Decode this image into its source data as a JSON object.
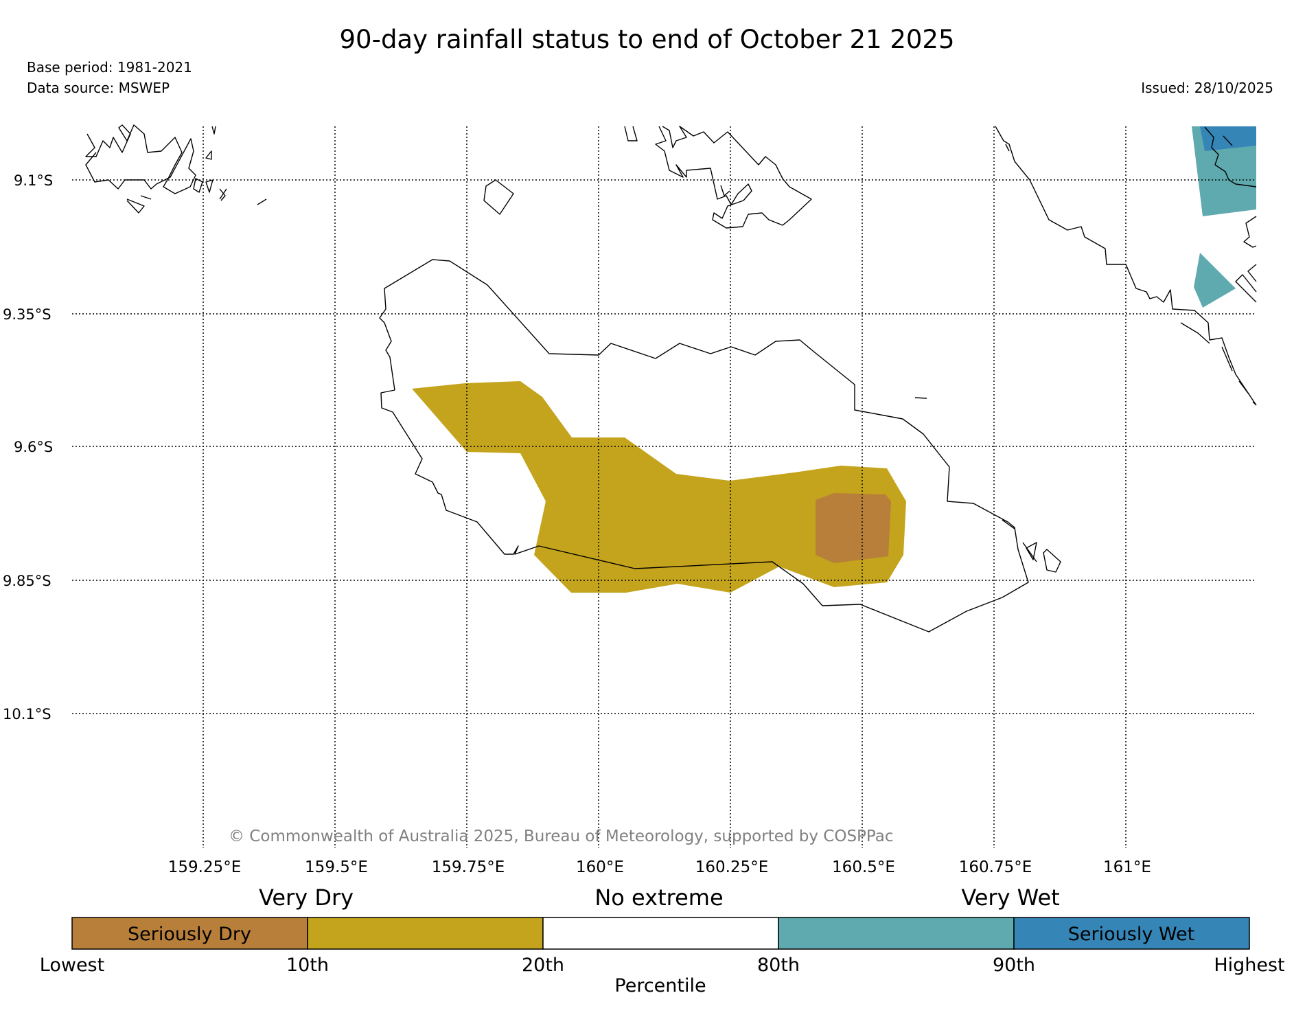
{
  "title": "90-day rainfall status to end of October 21 2025",
  "base_period": "Base period: 1981-2021",
  "data_source": "Data source: MSWEP",
  "issued": "Issued: 28/10/2025",
  "copyright": "© Commonwealth of Australia 2025, Bureau of Meteorology, supported by COSPPac",
  "lat_labels": [
    "9.1°S",
    "9.35°S",
    "9.6°S",
    "9.85°S",
    "10.1°S"
  ],
  "lon_labels": [
    "159.25°E",
    "159.5°E",
    "159.75°E",
    "160°E",
    "160.25°E",
    "160.5°E",
    "160.75°E",
    "161°E"
  ],
  "legend": {
    "category_labels": [
      "Very Dry",
      "No extreme",
      "Very Wet"
    ],
    "box_labels": [
      "Seriously Dry",
      "Seriously Wet"
    ],
    "percentile_labels": [
      "Lowest",
      "10th",
      "20th",
      "80th",
      "90th",
      "Highest"
    ],
    "axis_label": "Percentile",
    "colors": [
      "#b87f3a",
      "#c4a41d",
      "#ffffff",
      "#5eaaaf",
      "#3585b7"
    ]
  }
}
